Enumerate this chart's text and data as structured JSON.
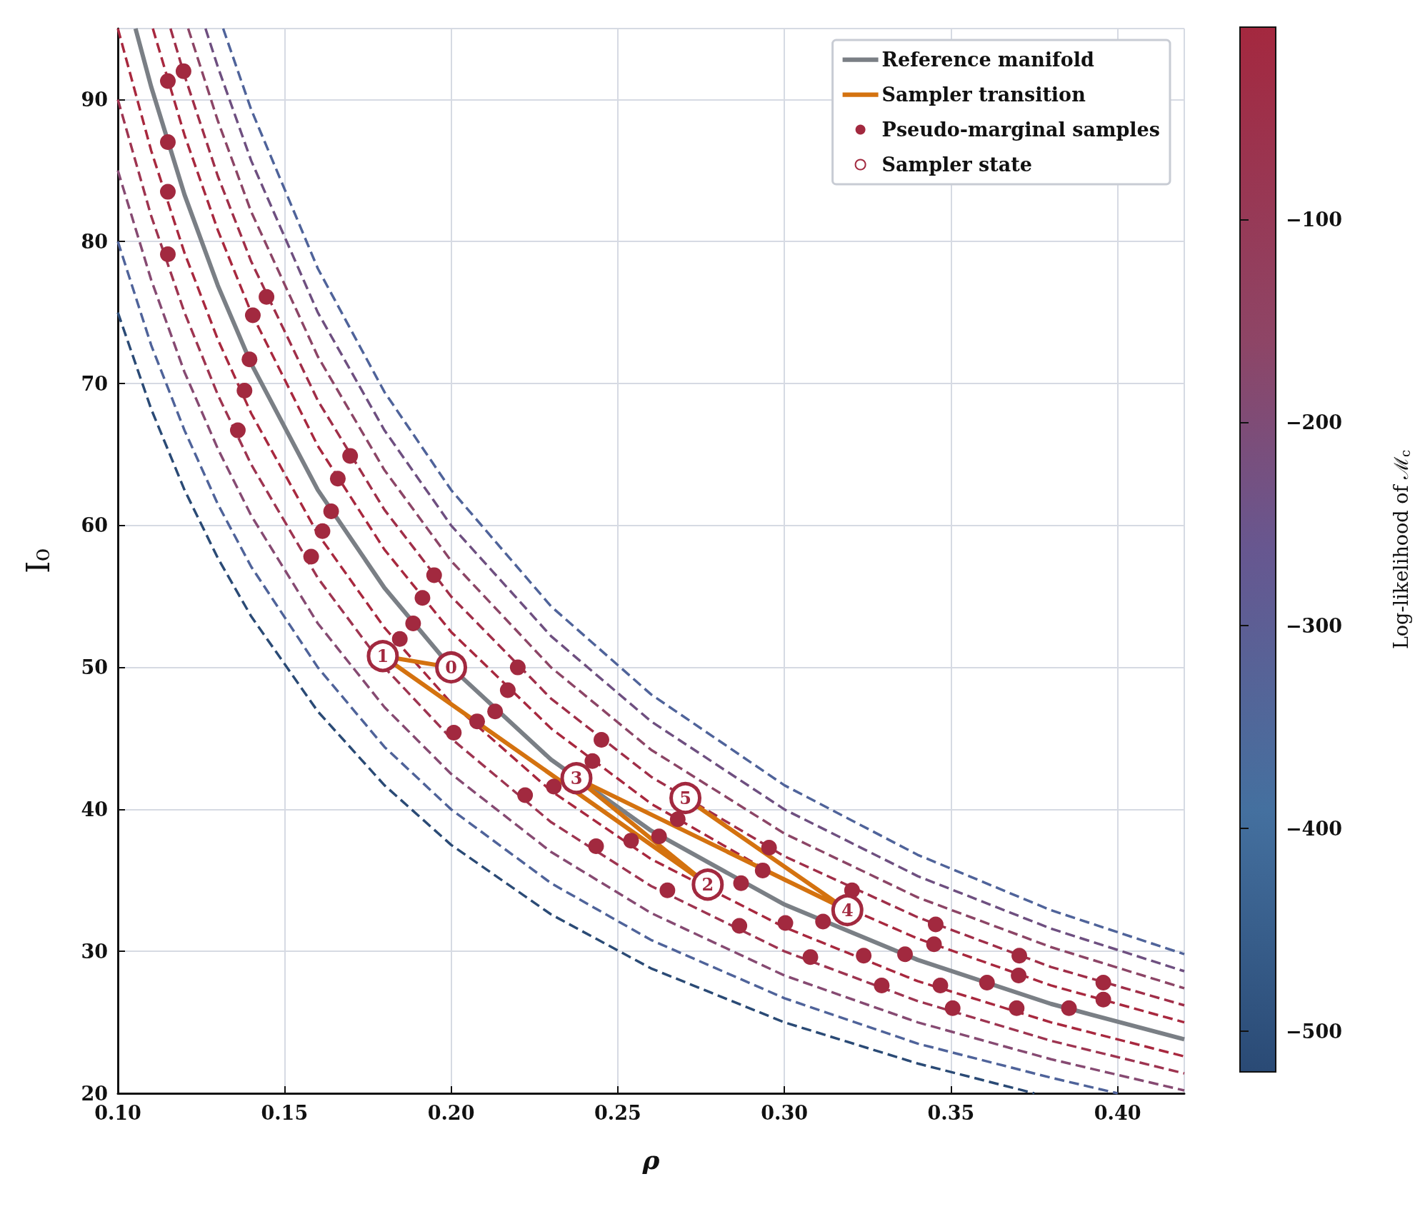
{
  "chart_data": {
    "type": "line",
    "xlabel": "ρ",
    "ylabel": "I₀",
    "clabel": "Log-likelihood of ℳ$_{c}$",
    "xlim": [
      0.1,
      0.42
    ],
    "ylim": [
      20,
      95
    ],
    "xticks": [
      {
        "value": 0.1,
        "label": "0.10"
      },
      {
        "value": 0.15,
        "label": "0.15"
      },
      {
        "value": 0.2,
        "label": "0.20"
      },
      {
        "value": 0.25,
        "label": "0.25"
      },
      {
        "value": 0.3,
        "label": "0.30"
      },
      {
        "value": 0.35,
        "label": "0.35"
      },
      {
        "value": 0.4,
        "label": "0.40"
      }
    ],
    "yticks": [
      20,
      30,
      40,
      50,
      60,
      70,
      80,
      90
    ],
    "clim": [
      -520,
      -5
    ],
    "cticks": [
      {
        "value": -500,
        "label": "−500"
      },
      {
        "value": -400,
        "label": "−400"
      },
      {
        "value": -300,
        "label": "−300"
      },
      {
        "value": -200,
        "label": "−200"
      },
      {
        "value": -100,
        "label": "−100"
      }
    ],
    "grid": true,
    "legend": "top right",
    "annotations": [
      {
        "text": "0",
        "x": 0.2,
        "y": 50.0
      },
      {
        "text": "1",
        "x": 0.1795,
        "y": 50.8
      },
      {
        "text": "2",
        "x": 0.277,
        "y": 34.7
      },
      {
        "text": "3",
        "x": 0.2376,
        "y": 42.2
      },
      {
        "text": "4",
        "x": 0.3189,
        "y": 32.9
      },
      {
        "text": "5",
        "x": 0.2703,
        "y": 40.8
      }
    ],
    "series": [
      {
        "line_style": "dashed",
        "marker": "none",
        "color": "#2a4a75",
        "x": [
          0.1,
          0.11,
          0.12,
          0.13,
          0.14,
          0.16,
          0.18,
          0.2,
          0.23,
          0.26,
          0.3,
          0.34,
          0.375
        ],
        "values": [
          75,
          68.2,
          62.5,
          57.7,
          53.6,
          46.9,
          41.7,
          37.5,
          32.6,
          28.8,
          25.0,
          22.1,
          20.0
        ]
      },
      {
        "line_style": "dashed",
        "marker": "none",
        "color": "#4f639a",
        "x": [
          0.1,
          0.11,
          0.12,
          0.13,
          0.14,
          0.16,
          0.18,
          0.2,
          0.23,
          0.26,
          0.3,
          0.34,
          0.38,
          0.4
        ],
        "values": [
          80,
          72.7,
          66.7,
          61.5,
          57.1,
          50,
          44.4,
          40,
          34.8,
          30.8,
          26.7,
          23.5,
          21.1,
          20.0
        ]
      },
      {
        "line_style": "dashed",
        "marker": "none",
        "color": "#864a72",
        "x": [
          0.1,
          0.11,
          0.12,
          0.13,
          0.14,
          0.16,
          0.18,
          0.2,
          0.23,
          0.26,
          0.3,
          0.34,
          0.38,
          0.42
        ],
        "values": [
          85,
          77.3,
          70.8,
          65.4,
          60.7,
          53.1,
          47.2,
          42.5,
          37.0,
          32.7,
          28.3,
          25.0,
          22.4,
          20.2
        ]
      },
      {
        "line_style": "dashed",
        "marker": "none",
        "color": "#9e3450",
        "x": [
          0.1,
          0.11,
          0.12,
          0.13,
          0.14,
          0.16,
          0.18,
          0.2,
          0.23,
          0.26,
          0.3,
          0.34,
          0.38,
          0.42
        ],
        "values": [
          90,
          81.8,
          75,
          69.2,
          64.3,
          56.3,
          50,
          45,
          39.1,
          34.6,
          30,
          26.5,
          23.7,
          21.4
        ]
      },
      {
        "line_style": "dashed",
        "marker": "none",
        "color": "#a8283e",
        "x": [
          0.1,
          0.11,
          0.12,
          0.13,
          0.14,
          0.16,
          0.18,
          0.2,
          0.23,
          0.26,
          0.3,
          0.34,
          0.38,
          0.42
        ],
        "values": [
          95,
          86.4,
          79.2,
          73.1,
          67.9,
          59.4,
          52.8,
          47.5,
          41.3,
          36.5,
          31.7,
          27.9,
          25.0,
          22.6
        ]
      },
      {
        "line_style": "dashed",
        "marker": "none",
        "color": "#a8283e",
        "x": [
          0.1105,
          0.12,
          0.13,
          0.14,
          0.16,
          0.18,
          0.2,
          0.23,
          0.26,
          0.3,
          0.34,
          0.38,
          0.42
        ],
        "values": [
          95,
          87.5,
          80.8,
          75,
          65.6,
          58.3,
          52.5,
          45.7,
          40.4,
          35,
          30.9,
          27.6,
          25
        ]
      },
      {
        "line_style": "dashed",
        "marker": "none",
        "color": "#a02e48",
        "x": [
          0.1158,
          0.12,
          0.13,
          0.14,
          0.16,
          0.18,
          0.2,
          0.23,
          0.26,
          0.3,
          0.34,
          0.38,
          0.42
        ],
        "values": [
          95,
          91.7,
          84.6,
          78.6,
          68.8,
          61.1,
          55,
          47.8,
          42.3,
          36.7,
          32.4,
          28.9,
          26.2
        ]
      },
      {
        "line_style": "dashed",
        "marker": "none",
        "color": "#8c4566",
        "x": [
          0.1211,
          0.13,
          0.14,
          0.16,
          0.18,
          0.2,
          0.23,
          0.26,
          0.3,
          0.34,
          0.38,
          0.42
        ],
        "values": [
          95,
          88.5,
          82.1,
          71.9,
          63.9,
          57.5,
          50,
          44.2,
          38.3,
          33.8,
          30.3,
          27.4
        ]
      },
      {
        "line_style": "dashed",
        "marker": "none",
        "color": "#6e4f80",
        "x": [
          0.1263,
          0.13,
          0.14,
          0.16,
          0.18,
          0.2,
          0.23,
          0.26,
          0.3,
          0.34,
          0.38,
          0.42
        ],
        "values": [
          95,
          92.3,
          85.7,
          75,
          66.7,
          60,
          52.2,
          46.2,
          40,
          35.3,
          31.6,
          28.6
        ]
      },
      {
        "line_style": "dashed",
        "marker": "none",
        "color": "#4f639a",
        "x": [
          0.1316,
          0.14,
          0.16,
          0.18,
          0.2,
          0.23,
          0.26,
          0.3,
          0.34,
          0.38,
          0.42
        ],
        "values": [
          95,
          89.3,
          78.1,
          69.4,
          62.5,
          54.3,
          48.1,
          41.7,
          36.8,
          32.9,
          29.8
        ]
      },
      {
        "name": "Reference manifold",
        "line_style": "solid",
        "marker": "none",
        "color": "#7a7f85",
        "x": [
          0.1053,
          0.11,
          0.12,
          0.13,
          0.14,
          0.16,
          0.18,
          0.2,
          0.23,
          0.26,
          0.3,
          0.34,
          0.38,
          0.42
        ],
        "values": [
          95,
          90.9,
          83.3,
          76.9,
          71.4,
          62.5,
          55.6,
          50,
          43.5,
          38.5,
          33.3,
          29.4,
          26.3,
          23.8
        ]
      },
      {
        "name": "Sampler transition",
        "line_style": "solid",
        "marker": "none",
        "color": "#d4720f",
        "x": [
          0.2,
          0.1795,
          0.277,
          0.2376,
          0.3189,
          0.2703
        ],
        "values": [
          50.0,
          50.8,
          34.7,
          42.2,
          32.9,
          40.8
        ]
      },
      {
        "type": "scatter",
        "name": "Pseudo-marginal samples",
        "marker": "circle",
        "color": "#a2293f",
        "x": [
          0.115,
          0.1197,
          0.115,
          0.115,
          0.115,
          0.1405,
          0.1446,
          0.1395,
          0.138,
          0.136,
          0.1697,
          0.166,
          0.164,
          0.1614,
          0.158,
          0.1949,
          0.1914,
          0.1886,
          0.1846,
          0.22,
          0.217,
          0.2132,
          0.2078,
          0.2008,
          0.2451,
          0.2424,
          0.2222,
          0.2308,
          0.2435,
          0.254,
          0.2624,
          0.268,
          0.2649,
          0.287,
          0.2865,
          0.2935,
          0.2954,
          0.3003,
          0.3116,
          0.3203,
          0.3078,
          0.3238,
          0.3292,
          0.3362,
          0.3454,
          0.3449,
          0.3468,
          0.3505,
          0.3608,
          0.3705,
          0.3703,
          0.3697,
          0.3854,
          0.3957,
          0.3957
        ],
        "values": [
          91.3,
          92.0,
          87.0,
          83.5,
          79.1,
          74.8,
          76.1,
          71.7,
          69.5,
          66.7,
          64.9,
          63.3,
          61.0,
          59.6,
          57.8,
          56.5,
          54.9,
          53.1,
          52.0,
          50.0,
          48.4,
          46.9,
          46.2,
          45.4,
          44.9,
          43.4,
          41.0,
          41.6,
          37.4,
          37.8,
          38.1,
          39.3,
          34.3,
          34.8,
          31.8,
          35.7,
          37.3,
          32.0,
          32.1,
          34.3,
          29.6,
          29.7,
          27.6,
          29.8,
          31.9,
          30.5,
          27.6,
          26.0,
          27.8,
          29.7,
          28.3,
          26.0,
          26.0,
          27.8,
          26.6
        ]
      },
      {
        "type": "scatter",
        "name": "Sampler state",
        "marker": "circle",
        "color": "#a2293f",
        "x": [
          0.2,
          0.1795,
          0.277,
          0.2376,
          0.3189,
          0.2703
        ],
        "values": [
          50.0,
          50.8,
          34.7,
          42.2,
          32.9,
          40.8
        ]
      }
    ]
  }
}
